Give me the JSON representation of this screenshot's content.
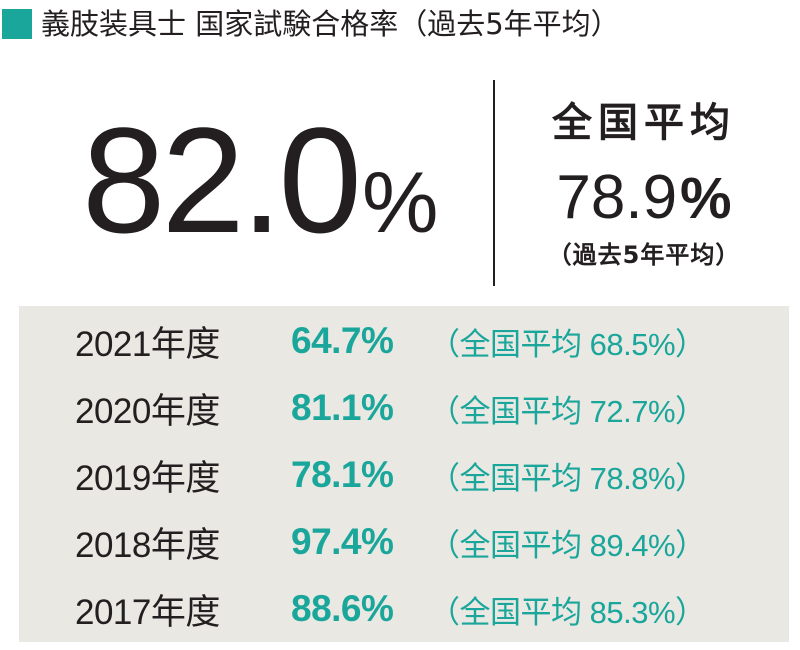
{
  "header": {
    "title": "義肢装具士 国家試験合格率（過去5年平均）",
    "accent_color": "#1aa69a"
  },
  "summary": {
    "rate_value": "82.0",
    "rate_unit": "%",
    "national_label": "全国平均",
    "national_value": "78.9",
    "national_unit": "%",
    "national_note": "（過去5年平均）"
  },
  "chart_data": {
    "type": "table",
    "title": "義肢装具士 国家試験合格率（過去5年平均）",
    "average": {
      "school": 82.0,
      "national": 78.9
    },
    "rows": [
      {
        "year": "2021年度",
        "rate": "64.7%",
        "national": "（全国平均 68.5%）"
      },
      {
        "year": "2020年度",
        "rate": "81.1%",
        "national": "（全国平均 72.7%）"
      },
      {
        "year": "2019年度",
        "rate": "78.1%",
        "national": "（全国平均 78.8%）"
      },
      {
        "year": "2018年度",
        "rate": "97.4%",
        "national": "（全国平均 89.4%）"
      },
      {
        "year": "2017年度",
        "rate": "88.6%",
        "national": "（全国平均 85.3%）"
      }
    ],
    "colors": {
      "rate_text": "#1aa69a",
      "box_background": "#e9e8e3",
      "text": "#231f20"
    }
  }
}
